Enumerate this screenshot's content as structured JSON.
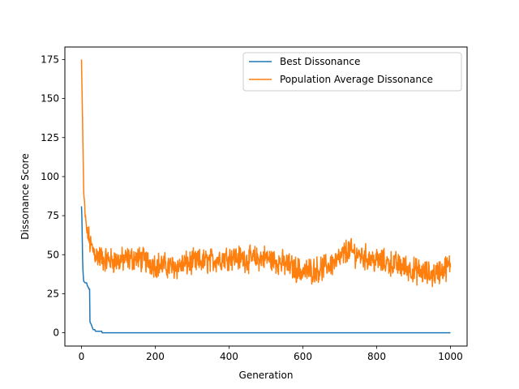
{
  "chart_data": {
    "type": "line",
    "title": "",
    "xlabel": "Generation",
    "ylabel": "Dissonance Score",
    "xlim": [
      -45,
      1045
    ],
    "ylim": [
      -8.5,
      183
    ],
    "x_ticks": [
      0,
      200,
      400,
      600,
      800,
      1000
    ],
    "y_ticks": [
      0,
      25,
      50,
      75,
      100,
      125,
      150,
      175
    ],
    "grid": false,
    "legend_position": "top-right",
    "series": [
      {
        "name": "Best Dissonance",
        "color": "#1f77b4",
        "points": [
          [
            0,
            81
          ],
          [
            1,
            75
          ],
          [
            2,
            62
          ],
          [
            3,
            48
          ],
          [
            4,
            40
          ],
          [
            5,
            36
          ],
          [
            6,
            33
          ],
          [
            10,
            32
          ],
          [
            14,
            32
          ],
          [
            16,
            30
          ],
          [
            19,
            29
          ],
          [
            20,
            28
          ],
          [
            22,
            28
          ],
          [
            23,
            7
          ],
          [
            25,
            6
          ],
          [
            27,
            5
          ],
          [
            30,
            3
          ],
          [
            32,
            2
          ],
          [
            36,
            2
          ],
          [
            38,
            1
          ],
          [
            45,
            1
          ],
          [
            50,
            1
          ],
          [
            55,
            1
          ],
          [
            56,
            0
          ],
          [
            60,
            0
          ],
          [
            1000,
            0
          ]
        ]
      },
      {
        "name": "Population Average Dissonance",
        "color": "#ff7f0e",
        "anchors": [
          [
            0,
            175
          ],
          [
            3,
            135
          ],
          [
            6,
            90
          ],
          [
            10,
            75
          ],
          [
            14,
            66
          ],
          [
            20,
            60
          ],
          [
            26,
            55
          ],
          [
            40,
            50
          ],
          [
            60,
            47
          ],
          [
            100,
            46
          ],
          [
            150,
            48
          ],
          [
            200,
            44
          ],
          [
            250,
            42
          ],
          [
            300,
            45
          ],
          [
            350,
            46
          ],
          [
            400,
            49
          ],
          [
            450,
            47
          ],
          [
            500,
            48
          ],
          [
            550,
            44
          ],
          [
            600,
            39
          ],
          [
            650,
            41
          ],
          [
            700,
            47
          ],
          [
            720,
            53
          ],
          [
            750,
            50
          ],
          [
            800,
            46
          ],
          [
            850,
            44
          ],
          [
            900,
            40
          ],
          [
            950,
            37
          ],
          [
            1000,
            43
          ]
        ],
        "noise_amplitude": 6.5,
        "y_min_observed": 23,
        "y_max_observed": 175
      }
    ]
  }
}
